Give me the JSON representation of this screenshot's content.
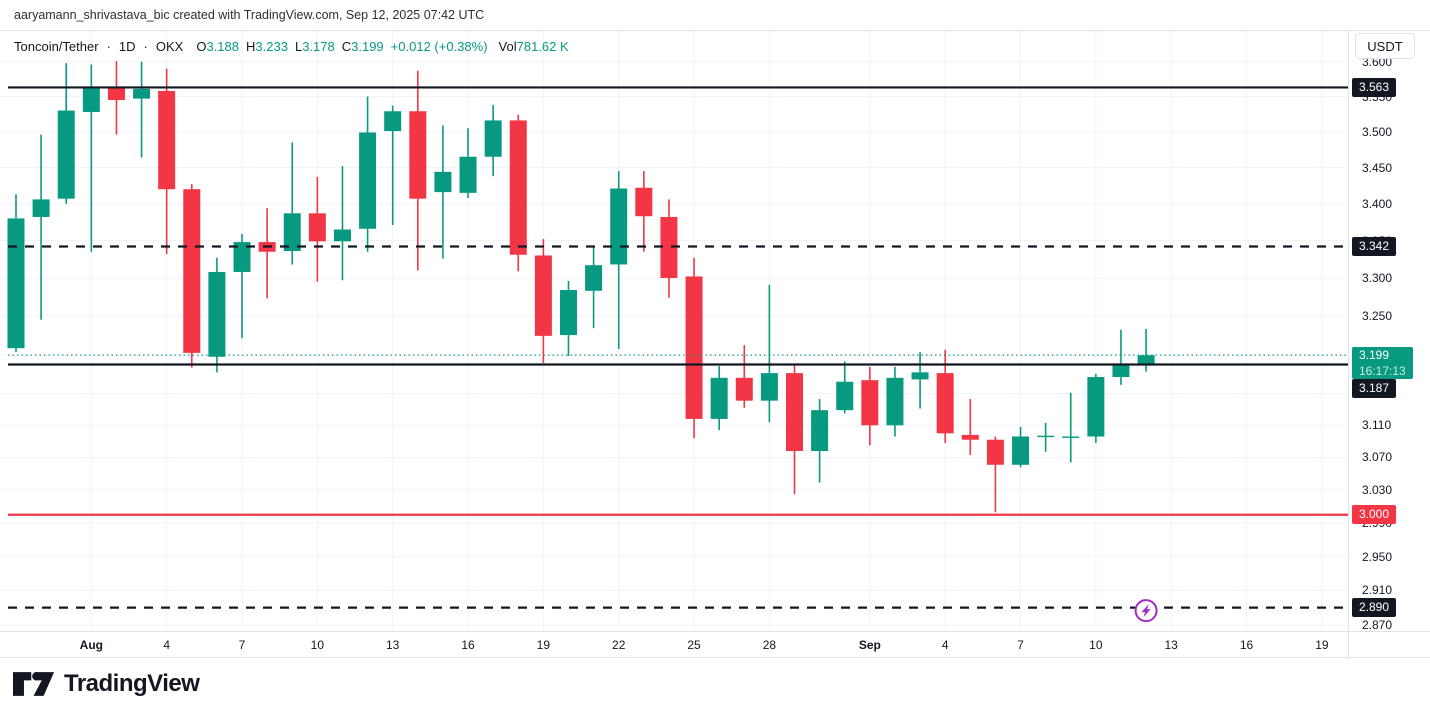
{
  "attribution": "aaryamann_shrivastava_bic created with TradingView.com, Sep 12, 2025 07:42 UTC",
  "toolbar": {
    "symbol": "Toncoin/Tether",
    "separator": "·",
    "interval": "1D",
    "exchange": "OKX",
    "ohlc": {
      "open_label": "O",
      "open": "3.188",
      "high_label": "H",
      "high": "3.233",
      "low_label": "L",
      "low": "3.178",
      "close_label": "C",
      "close": "3.199",
      "change": "+0.012 (+0.38%)",
      "volume_label": "Vol",
      "volume": "781.62 K"
    }
  },
  "price_axis": {
    "currency_button": "USDT"
  },
  "footer": {
    "logo_text": "TradingView"
  },
  "chart_data": {
    "type": "candlestick",
    "title": "Toncoin/Tether",
    "interval": "1D",
    "exchange": "OKX",
    "scale": "logarithmic",
    "grid": true,
    "colors": {
      "up": "#089981",
      "down": "#f23645",
      "line_black": "#131722",
      "line_red": "#f23645",
      "alert_purple": "#a32cc4",
      "grid": "#f0f3fa"
    },
    "price_axis_ticks": [
      3.6,
      3.55,
      3.5,
      3.45,
      3.4,
      3.35,
      3.3,
      3.25,
      3.2,
      3.15,
      3.11,
      3.07,
      3.03,
      2.99,
      2.95,
      2.91,
      2.87
    ],
    "time_axis_labels": [
      {
        "label": "Aug",
        "bold": true,
        "i": 3
      },
      {
        "label": "4",
        "i": 6
      },
      {
        "label": "7",
        "i": 9
      },
      {
        "label": "10",
        "i": 12
      },
      {
        "label": "13",
        "i": 15
      },
      {
        "label": "16",
        "i": 18
      },
      {
        "label": "19",
        "i": 21
      },
      {
        "label": "22",
        "i": 24
      },
      {
        "label": "25",
        "i": 27
      },
      {
        "label": "28",
        "i": 30
      },
      {
        "label": "Sep",
        "bold": true,
        "i": 34
      },
      {
        "label": "4",
        "i": 37
      },
      {
        "label": "7",
        "i": 40
      },
      {
        "label": "10",
        "i": 43
      },
      {
        "label": "13",
        "i": 46
      },
      {
        "label": "16",
        "i": 49
      },
      {
        "label": "19",
        "i": 52
      }
    ],
    "candles": [
      [
        "Jul 29",
        3.208,
        3.413,
        3.203,
        3.38
      ],
      [
        "Jul 30",
        3.382,
        3.496,
        3.245,
        3.406
      ],
      [
        "Jul 31",
        3.407,
        3.598,
        3.4,
        3.53
      ],
      [
        "Aug 1",
        3.528,
        3.596,
        3.335,
        3.563
      ],
      [
        "Aug 2",
        3.563,
        3.601,
        3.496,
        3.545
      ],
      [
        "Aug 3",
        3.547,
        3.6,
        3.464,
        3.561
      ],
      [
        "Aug 4",
        3.558,
        3.59,
        3.332,
        3.42
      ],
      [
        "Aug 5",
        3.42,
        3.427,
        3.183,
        3.202
      ],
      [
        "Aug 6",
        3.197,
        3.327,
        3.177,
        3.308
      ],
      [
        "Aug 7",
        3.308,
        3.359,
        3.221,
        3.348
      ],
      [
        "Aug 8",
        3.348,
        3.394,
        3.273,
        3.335
      ],
      [
        "Aug 9",
        3.336,
        3.485,
        3.318,
        3.387
      ],
      [
        "Aug 10",
        3.387,
        3.437,
        3.295,
        3.349
      ],
      [
        "Aug 11",
        3.349,
        3.452,
        3.297,
        3.365
      ],
      [
        "Aug 12",
        3.366,
        3.55,
        3.335,
        3.499
      ],
      [
        "Aug 13",
        3.501,
        3.537,
        3.371,
        3.529
      ],
      [
        "Aug 14",
        3.529,
        3.587,
        3.31,
        3.407
      ],
      [
        "Aug 15",
        3.416,
        3.509,
        3.326,
        3.444
      ],
      [
        "Aug 16",
        3.415,
        3.505,
        3.408,
        3.465
      ],
      [
        "Aug 17",
        3.465,
        3.538,
        3.438,
        3.516
      ],
      [
        "Aug 18",
        3.516,
        3.524,
        3.309,
        3.331
      ],
      [
        "Aug 19",
        3.33,
        3.352,
        3.189,
        3.224
      ],
      [
        "Aug 20",
        3.225,
        3.296,
        3.198,
        3.284
      ],
      [
        "Aug 21",
        3.283,
        3.342,
        3.234,
        3.317
      ],
      [
        "Aug 22",
        3.318,
        3.445,
        3.207,
        3.421
      ],
      [
        "Aug 23",
        3.422,
        3.445,
        3.335,
        3.383
      ],
      [
        "Aug 24",
        3.382,
        3.406,
        3.274,
        3.3
      ],
      [
        "Aug 25",
        3.302,
        3.327,
        3.094,
        3.118
      ],
      [
        "Aug 26",
        3.118,
        3.185,
        3.104,
        3.17
      ],
      [
        "Aug 27",
        3.17,
        3.212,
        3.132,
        3.141
      ],
      [
        "Aug 28",
        3.141,
        3.291,
        3.114,
        3.176
      ],
      [
        "Aug 29",
        3.176,
        3.187,
        3.025,
        3.078
      ],
      [
        "Aug 30",
        3.078,
        3.143,
        3.039,
        3.129
      ],
      [
        "Aug 31",
        3.129,
        3.191,
        3.125,
        3.165
      ],
      [
        "Sep 1",
        3.167,
        3.184,
        3.085,
        3.11
      ],
      [
        "Sep 2",
        3.11,
        3.184,
        3.096,
        3.17
      ],
      [
        "Sep 3",
        3.168,
        3.203,
        3.131,
        3.177
      ],
      [
        "Sep 4",
        3.176,
        3.206,
        3.088,
        3.1
      ],
      [
        "Sep 5",
        3.098,
        3.143,
        3.073,
        3.092
      ],
      [
        "Sep 6",
        3.092,
        3.096,
        3.003,
        3.061
      ],
      [
        "Sep 7",
        3.061,
        3.108,
        3.058,
        3.096
      ],
      [
        "Sep 8",
        3.096,
        3.113,
        3.077,
        3.097
      ],
      [
        "Sep 9",
        3.095,
        3.151,
        3.064,
        3.096
      ],
      [
        "Sep 10",
        3.096,
        3.175,
        3.088,
        3.171
      ],
      [
        "Sep 11",
        3.171,
        3.232,
        3.161,
        3.188
      ],
      [
        "Sep 12",
        3.188,
        3.233,
        3.178,
        3.199
      ]
    ],
    "levels": [
      {
        "price": 3.563,
        "display": "3.563",
        "line": "solid",
        "color": "#131722"
      },
      {
        "price": 3.342,
        "display": "3.342",
        "line": "dashed",
        "color": "#131722"
      },
      {
        "price": 3.187,
        "display": "3.187",
        "line": "solid",
        "color": "#131722",
        "label_offset": 24
      },
      {
        "price": 3.0,
        "display": "3.000",
        "line": "solid",
        "color": "#f23645"
      },
      {
        "price": 2.89,
        "display": "2.890",
        "line": "dashed",
        "color": "#131722",
        "alert_icon": true
      }
    ],
    "current_price": {
      "price": 3.199,
      "display": "3.199",
      "countdown": "16:17:13"
    }
  }
}
